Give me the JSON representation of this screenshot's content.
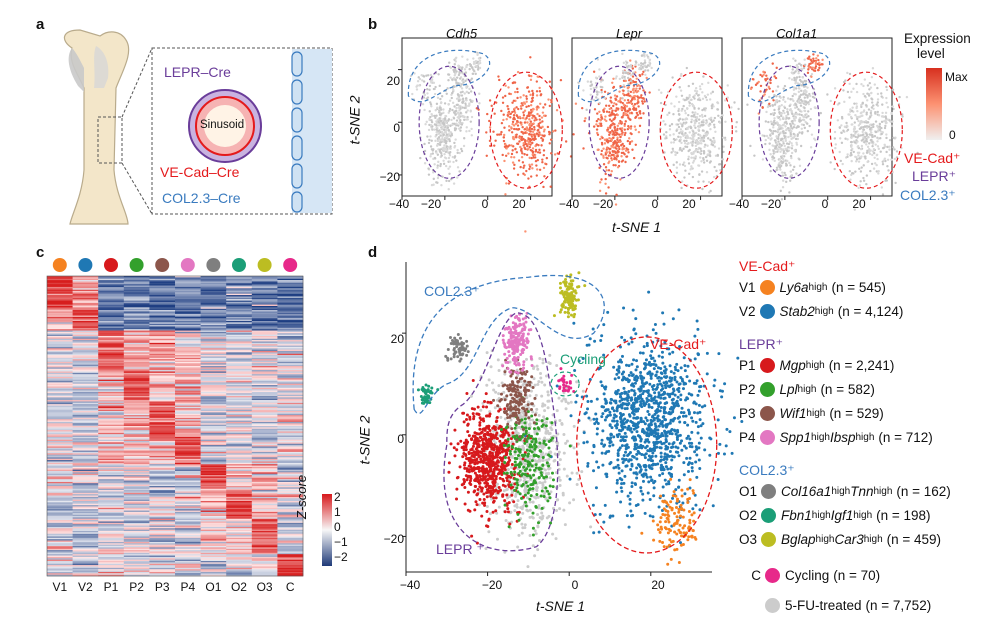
{
  "panels": {
    "a": "a",
    "b": "b",
    "c": "c",
    "d": "d"
  },
  "panel_a": {
    "labels": {
      "lepr": "LEPR–Cre",
      "sinusoid": "Sinusoid",
      "vecad": "VE-Cad–Cre",
      "col": "COL2.3–Cre"
    },
    "colors": {
      "lepr": "#6a3d9a",
      "vecad": "#e41a1c",
      "col": "#3a7bbf"
    }
  },
  "panel_b": {
    "genes": [
      "Cdh5",
      "Lepr",
      "Col1a1"
    ],
    "colorbar": {
      "title_line1": "Expression",
      "title_line2": "level",
      "max": "Max",
      "min": "0"
    },
    "region_labels": {
      "vecad": "VE-Cad⁺",
      "lepr": "LEPR⁺",
      "col": "COL2.3⁺"
    },
    "xlabel": "t-SNE 1",
    "ylabel": "t-SNE 2",
    "xticks": [
      "−40",
      "−20",
      "0",
      "20"
    ],
    "yticks": [
      "20",
      "0",
      "−20"
    ]
  },
  "panel_c": {
    "columns": [
      "V1",
      "V2",
      "P1",
      "P2",
      "P3",
      "P4",
      "O1",
      "O2",
      "O3",
      "C"
    ],
    "column_colors": [
      "#f58220",
      "#1f78b4",
      "#d7191c",
      "#33a02c",
      "#8c564b",
      "#e377c2",
      "#7f7f7f",
      "#1b9e77",
      "#bcbd22",
      "#e7298a"
    ],
    "colorbar": {
      "title": "Z-score",
      "ticks": [
        "2",
        "1",
        "0",
        "−1",
        "−2"
      ]
    }
  },
  "panel_d": {
    "xlabel": "t-SNE 1",
    "ylabel": "t-SNE 2",
    "xticks": [
      "−40",
      "−20",
      "0",
      "20"
    ],
    "yticks": [
      "20",
      "0",
      "−20"
    ],
    "region_labels": {
      "col": "COL2.3⁺",
      "cycling": "Cycling",
      "vecad": "VE-Cad⁺",
      "lepr": "LEPR ⁺"
    },
    "legend": {
      "groups": [
        {
          "header": "VE-Cad⁺",
          "color": "#e41a1c",
          "items": [
            {
              "id": "V1",
              "gene": "Ly6a",
              "sup": "high",
              "n": "(n = 545)",
              "color": "#f58220"
            },
            {
              "id": "V2",
              "gene": "Stab2",
              "sup": "high",
              "n": "(n = 4,124)",
              "color": "#1f78b4"
            }
          ]
        },
        {
          "header": "LEPR⁺",
          "color": "#6a3d9a",
          "items": [
            {
              "id": "P1",
              "gene": "Mgp",
              "sup": "high",
              "n": "(n = 2,241)",
              "color": "#d7191c"
            },
            {
              "id": "P2",
              "gene": "Lpl",
              "sup": "high",
              "n": "(n = 582)",
              "color": "#33a02c"
            },
            {
              "id": "P3",
              "gene": "Wif1",
              "sup": "high",
              "n": "(n = 529)",
              "color": "#8c564b"
            },
            {
              "id": "P4",
              "gene": "Spp1",
              "sup": "high",
              "gene2": "Ibsp",
              "sup2": "high",
              "n": "(n = 712)",
              "color": "#e377c2"
            }
          ]
        },
        {
          "header": "COL2.3⁺",
          "color": "#3a7bbf",
          "items": [
            {
              "id": "O1",
              "gene": "Col16a1",
              "sup": "high",
              "gene2": "Tnn",
              "sup2": "high",
              "n": "(n = 162)",
              "color": "#7f7f7f"
            },
            {
              "id": "O2",
              "gene": "Fbn1",
              "sup": "high",
              "gene2": "Igf1",
              "sup2": "high",
              "n": "(n = 198)",
              "color": "#1b9e77"
            },
            {
              "id": "O3",
              "gene": "Bglap",
              "sup": "high",
              "gene2": "Car3",
              "sup2": "high",
              "n": "(n = 459)",
              "color": "#bcbd22"
            }
          ]
        }
      ],
      "extra": [
        {
          "id": "C",
          "label": "Cycling",
          "n": "(n = 70)",
          "color": "#e7298a"
        },
        {
          "id": "",
          "label": "5-FU-treated",
          "n": "(n = 7,752)",
          "color": "#cccccc"
        }
      ]
    }
  }
}
